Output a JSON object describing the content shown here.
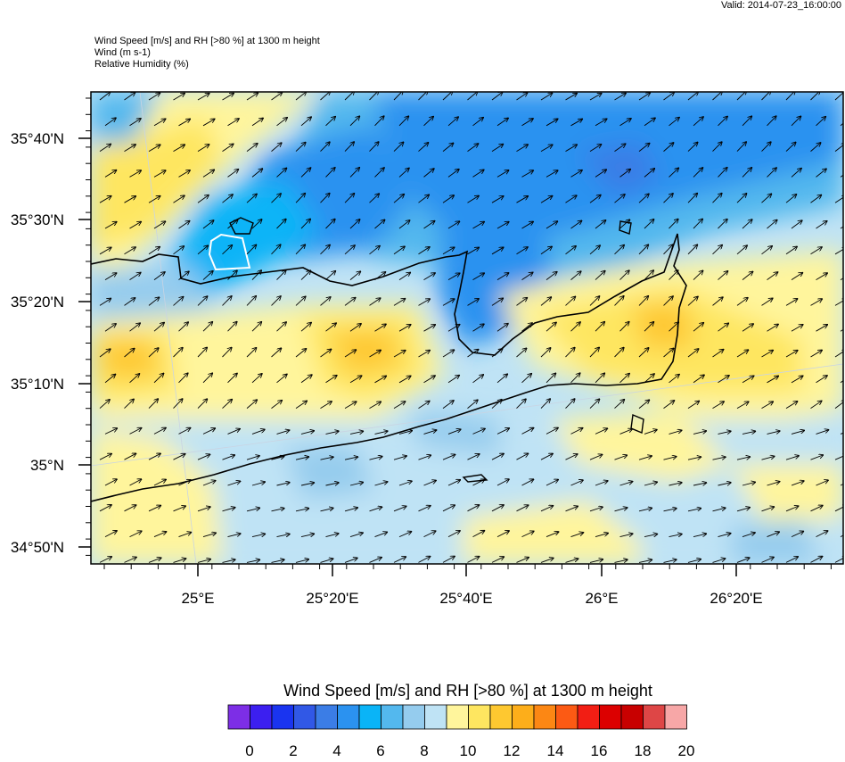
{
  "valid_label": "Valid: 2014-07-23_16:00:00",
  "header": {
    "line1": "Wind Speed [m/s] and RH [>80 %] at 1300 m height",
    "line2": "Wind   (m s-1)",
    "line3": "Relative Humidity   (%)"
  },
  "map": {
    "lat_ticks": [
      "35°40'N",
      "35°30'N",
      "35°20'N",
      "35°10'N",
      "35°N",
      "34°50'N"
    ],
    "lon_ticks": [
      "25°E",
      "25°20'E",
      "25°40'E",
      "26°E",
      "26°20'E"
    ],
    "wind_direction": "south-west to north-east"
  },
  "colorbar": {
    "title": "Wind Speed [m/s] and RH [>80 %] at 1300 m height",
    "labels": [
      "0",
      "2",
      "4",
      "6",
      "8",
      "10",
      "12",
      "14",
      "16",
      "18",
      "20"
    ],
    "colors": [
      "#7d2ee6",
      "#3c1ff0",
      "#1a34f0",
      "#3158e6",
      "#3b7de6",
      "#2b92f0",
      "#0ab4f7",
      "#53b8ee",
      "#95ccee",
      "#bfe3f5",
      "#fff59c",
      "#fee660",
      "#fec830",
      "#fdae1a",
      "#fc8714",
      "#fc5a14",
      "#f21e14",
      "#dc0000",
      "#c80000",
      "#de4646",
      "#f7a7a7"
    ]
  }
}
